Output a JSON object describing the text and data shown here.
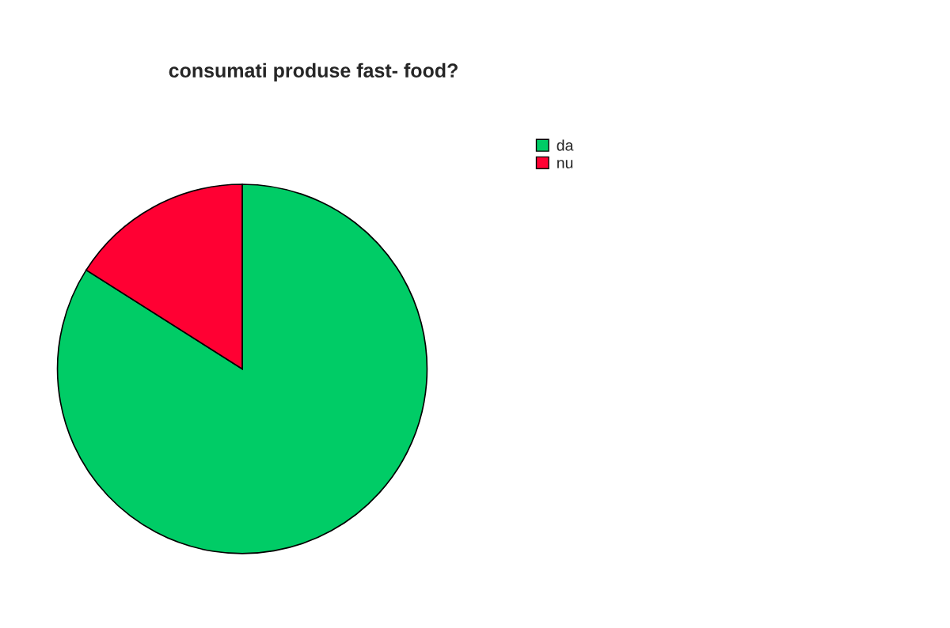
{
  "chart_data": {
    "type": "pie",
    "title": "consumati produse fast- food?",
    "categories": [
      "da",
      "nu"
    ],
    "values": [
      84,
      16
    ],
    "colors": [
      "#00cc66",
      "#ff0033"
    ],
    "legend": "top right"
  }
}
